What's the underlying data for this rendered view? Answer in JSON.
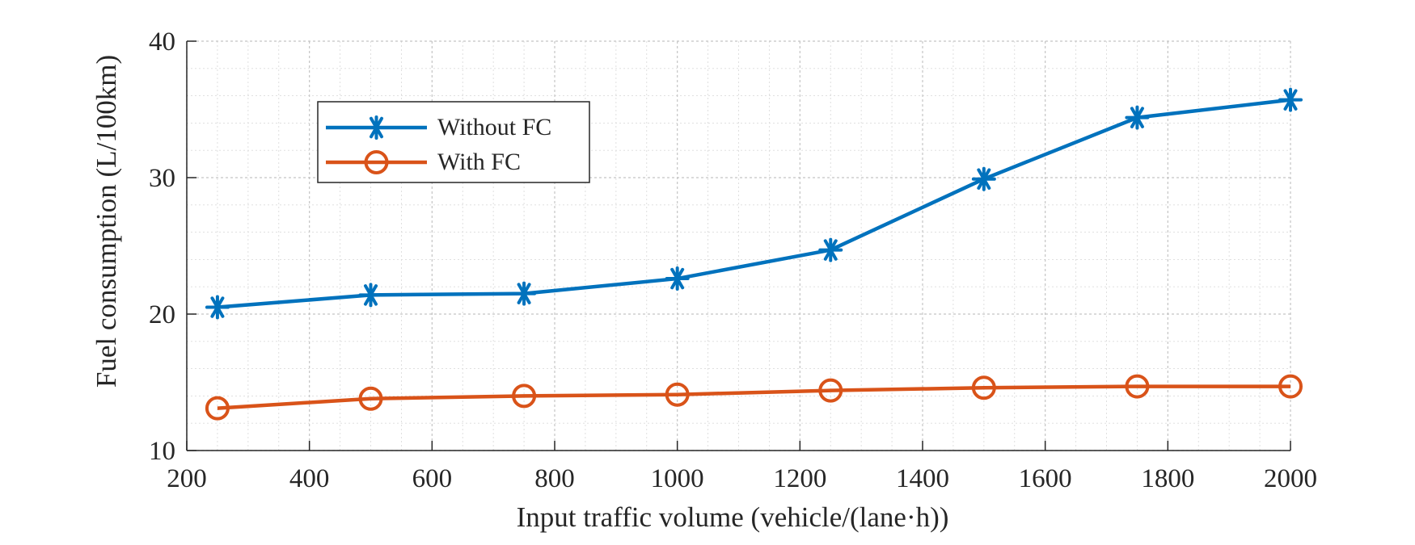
{
  "chart_data": {
    "type": "line",
    "title": "",
    "xlabel": "Input traffic volume (vehicle/(lane·h))",
    "ylabel": "Fuel consumption (L/100km)",
    "xlim": [
      200,
      2000
    ],
    "ylim": [
      10,
      40
    ],
    "xticks": [
      200,
      400,
      600,
      800,
      1000,
      1200,
      1400,
      1600,
      1800,
      2000
    ],
    "yticks": [
      10,
      20,
      30,
      40
    ],
    "x": [
      250,
      500,
      750,
      1000,
      1250,
      1500,
      1750,
      2000
    ],
    "grid": true,
    "minor_grid": true,
    "legend_position": "upper-left",
    "series": [
      {
        "name": "Without FC",
        "color": "#0072BD",
        "marker": "asterisk",
        "values": [
          20.5,
          21.4,
          21.5,
          22.6,
          24.7,
          29.9,
          34.4,
          35.7
        ]
      },
      {
        "name": "With FC",
        "color": "#D95319",
        "marker": "circle",
        "values": [
          13.1,
          13.8,
          14.0,
          14.1,
          14.4,
          14.6,
          14.7,
          14.7
        ]
      }
    ]
  }
}
